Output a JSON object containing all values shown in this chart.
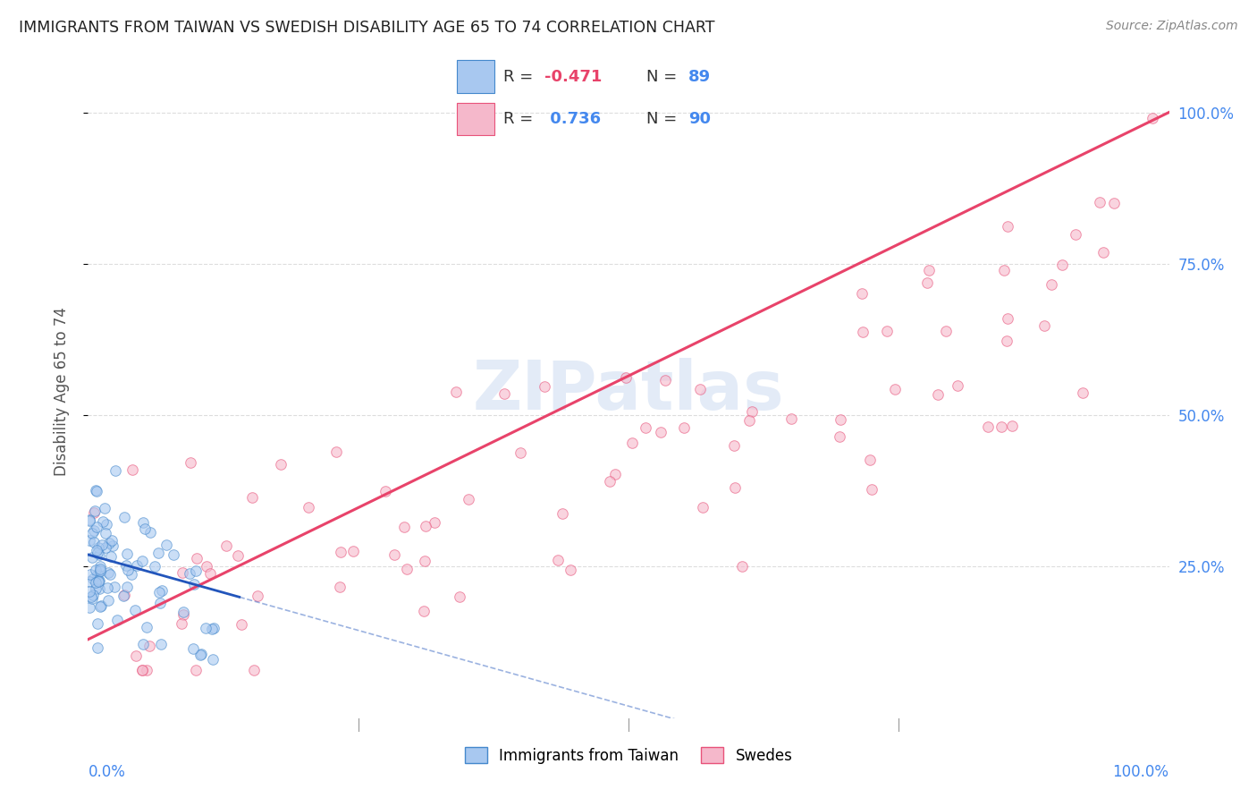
{
  "title": "IMMIGRANTS FROM TAIWAN VS SWEDISH DISABILITY AGE 65 TO 74 CORRELATION CHART",
  "source": "Source: ZipAtlas.com",
  "ylabel": "Disability Age 65 to 74",
  "legend_blue_label": "Immigrants from Taiwan",
  "legend_pink_label": "Swedes",
  "blue_R": -0.471,
  "blue_N": 89,
  "pink_R": 0.736,
  "pink_N": 90,
  "blue_color": "#A8C8F0",
  "pink_color": "#F5B8CB",
  "blue_edge_color": "#4488CC",
  "pink_edge_color": "#E8527A",
  "blue_line_color": "#2255BB",
  "pink_line_color": "#E8436A",
  "watermark_color": "#C8D8F0",
  "background_color": "#ffffff",
  "grid_color": "#DDDDDD",
  "axis_label_color": "#4488EE",
  "title_color": "#222222",
  "source_color": "#888888",
  "right_yticklabels": [
    "25.0%",
    "50.0%",
    "75.0%",
    "100.0%"
  ],
  "right_yticks": [
    0.25,
    0.5,
    0.75,
    1.0
  ],
  "seed": 7
}
